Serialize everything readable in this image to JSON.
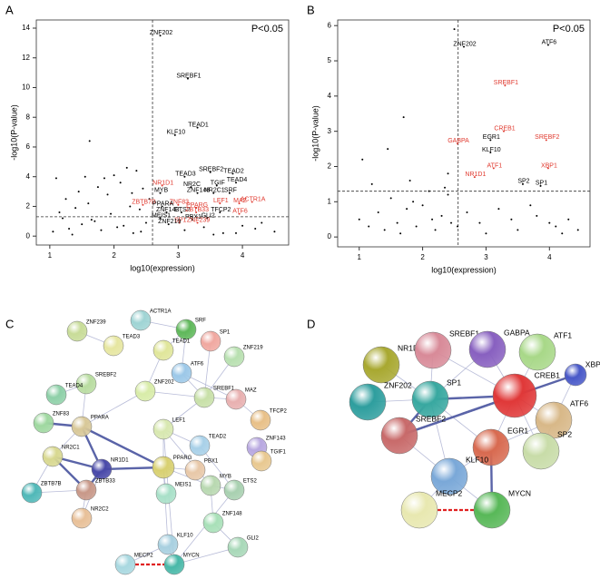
{
  "panels": [
    "A",
    "B",
    "C",
    "D"
  ],
  "chart_data": [
    {
      "type": "scatter",
      "annotation": "P<0.05",
      "xlabel": "log10(expression)",
      "ylabel": "-log10(P-value)",
      "xlim": [
        0.79,
        4.72
      ],
      "ylim": [
        -0.6,
        14.55
      ],
      "xticks": [
        1,
        2,
        3,
        4
      ],
      "yticks": [
        0,
        2,
        4,
        6,
        8,
        10,
        12,
        14
      ],
      "hline": 1.3,
      "vline": 2.6,
      "labeled": {
        "labels": [
          "ZNF202",
          "SREBF1",
          "TEAD1",
          "KLF10",
          "TEAD3",
          "SREBF2",
          "TEAD2",
          "TEAD4",
          "TGIF",
          "NR2C",
          "ZNF148",
          "NR2C1",
          "SRF",
          "NR1D1",
          "MYB",
          "ACTR1A",
          "MAZ",
          "LEF1",
          "ZBTB7B",
          "ZNF83",
          "PPARG",
          "PPARA",
          "ZNF143",
          "ETS2",
          "ZBTB33",
          "TFCP2",
          "ATF6",
          "GLI2",
          "PBX1",
          "MEIS1",
          "SP1",
          "ZNF239",
          "ZNF219"
        ],
        "x": [
          2.72,
          3.15,
          3.3,
          2.95,
          3.1,
          3.5,
          3.85,
          3.9,
          3.6,
          3.2,
          3.3,
          3.55,
          3.8,
          2.75,
          2.72,
          4.15,
          3.95,
          3.65,
          2.45,
          3.0,
          3.28,
          2.75,
          2.82,
          3.05,
          3.28,
          3.65,
          3.95,
          3.45,
          3.22,
          2.72,
          3.02,
          3.3,
          2.85
        ],
        "y": [
          13.5,
          10.6,
          7.3,
          6.8,
          4.0,
          4.3,
          4.2,
          3.6,
          3.4,
          3.3,
          2.9,
          2.9,
          2.9,
          3.4,
          2.9,
          2.3,
          2.2,
          2.2,
          2.1,
          2.1,
          1.9,
          2.0,
          1.6,
          1.6,
          1.6,
          1.6,
          1.5,
          1.2,
          1.1,
          1.2,
          0.9,
          0.9,
          0.8
        ],
        "colors": [
          "#000",
          "#000",
          "#000",
          "#000",
          "#000",
          "#000",
          "#000",
          "#000",
          "#000",
          "#000",
          "#000",
          "#000",
          "#000",
          "#e03a2f",
          "#000",
          "#e03a2f",
          "#e03a2f",
          "#e03a2f",
          "#e03a2f",
          "#e03a2f",
          "#e03a2f",
          "#000",
          "#000",
          "#000",
          "#e03a2f",
          "#000",
          "#e03a2f",
          "#000",
          "#000",
          "#000",
          "#e03a2f",
          "#e03a2f",
          "#000"
        ]
      },
      "background": {
        "x": [
          1.05,
          1.1,
          1.2,
          1.25,
          1.3,
          1.4,
          1.45,
          1.5,
          1.6,
          1.62,
          1.7,
          1.75,
          1.8,
          1.9,
          1.95,
          2.0,
          2.05,
          2.1,
          2.2,
          2.25,
          2.3,
          2.35,
          2.4,
          2.45,
          2.5,
          2.55,
          1.15,
          1.35,
          1.55,
          1.85,
          2.15,
          2.28,
          2.42,
          3.1,
          3.4,
          3.7,
          4.0,
          4.3,
          4.5,
          3.55,
          3.9,
          4.2,
          1.65
        ],
        "y": [
          0.3,
          3.9,
          1.2,
          2.5,
          0.5,
          1.9,
          3.0,
          0.8,
          2.2,
          6.4,
          1.0,
          3.3,
          0.4,
          2.8,
          1.5,
          4.1,
          0.6,
          3.6,
          4.6,
          2.0,
          0.2,
          4.4,
          1.8,
          3.2,
          0.9,
          2.5,
          1.6,
          0.1,
          4.0,
          3.9,
          0.7,
          2.9,
          0.3,
          0.4,
          0.6,
          0.2,
          0.7,
          0.9,
          0.3,
          0.1,
          0.2,
          0.5,
          1.1
        ]
      }
    },
    {
      "type": "scatter",
      "annotation": "P<0.05",
      "xlabel": "log10(expression)",
      "ylabel": "-log10(P-value)",
      "xlim": [
        0.66,
        4.64
      ],
      "ylim": [
        -0.28,
        6.16
      ],
      "xticks": [
        1,
        2,
        3,
        4
      ],
      "yticks": [
        0,
        1,
        2,
        3,
        4,
        5,
        6
      ],
      "hline": 1.3,
      "vline": 2.56,
      "labeled": {
        "labels": [
          "ZNF202",
          "ATF6",
          "SREBF1",
          "CREB1",
          "GABPA",
          "SREBF2",
          "EGR1",
          "KLF10",
          "ATF1",
          "XBP1",
          "NR1D1",
          "SP2",
          "SP1"
        ],
        "x": [
          2.65,
          3.98,
          3.3,
          3.28,
          2.55,
          3.95,
          3.07,
          3.07,
          3.12,
          3.98,
          2.82,
          3.58,
          3.86
        ],
        "y": [
          5.4,
          5.45,
          4.3,
          3.0,
          2.65,
          2.75,
          2.75,
          2.4,
          1.95,
          1.95,
          1.7,
          1.5,
          1.45
        ],
        "colors": [
          "#000",
          "#000",
          "#e03a2f",
          "#e03a2f",
          "#e03a2f",
          "#e03a2f",
          "#000",
          "#000",
          "#e03a2f",
          "#e03a2f",
          "#e03a2f",
          "#000",
          "#000"
        ]
      },
      "background": {
        "x": [
          1.0,
          1.05,
          1.15,
          1.2,
          1.3,
          1.4,
          1.5,
          1.6,
          1.7,
          1.75,
          1.8,
          1.9,
          2.0,
          2.1,
          2.2,
          2.3,
          2.4,
          2.45,
          2.5,
          1.45,
          1.65,
          1.85,
          2.15,
          2.35,
          2.55,
          2.9,
          3.2,
          3.5,
          3.8,
          4.1,
          4.3,
          4.45,
          2.7,
          3.0,
          3.4,
          3.7,
          4.0,
          4.2,
          2.4
        ],
        "y": [
          0.5,
          2.2,
          0.3,
          1.5,
          0.7,
          0.2,
          1.1,
          0.4,
          3.4,
          0.8,
          1.6,
          0.3,
          0.9,
          1.3,
          0.2,
          0.6,
          1.8,
          0.4,
          5.9,
          2.5,
          0.1,
          1.0,
          0.5,
          1.4,
          0.3,
          0.4,
          0.8,
          0.2,
          0.6,
          0.3,
          0.5,
          0.2,
          0.7,
          0.1,
          0.5,
          0.9,
          0.4,
          0.1,
          1.2
        ]
      }
    }
  ],
  "networks": [
    {
      "nodes": [
        "ZNF239",
        "ACTR1A",
        "SRF",
        "TEAD3",
        "TEAD1",
        "SP1",
        "ZNF219",
        "ATF6",
        "SREBF2",
        "ZNF202",
        "TEAD4",
        "SREBF1",
        "MAZ",
        "ZNF83",
        "PPARA",
        "TFCP2",
        "LEF1",
        "ZNF143",
        "TEAD2",
        "TGIF1",
        "NR2C1",
        "NR1D1",
        "PPARG",
        "PBX1",
        "ZBTB7B",
        "ZBTB33",
        "MYB",
        "MEIS1",
        "ETS2",
        "NR2C2",
        "ZNF148",
        "GLI2",
        "KLF10",
        "MECP2",
        "MYCN"
      ]
    },
    {
      "nodes": [
        "NR1D1",
        "SREBF1",
        "GABPA",
        "ATF1",
        "XBP1",
        "ZNF202",
        "SP1",
        "CREB1",
        "ATF6",
        "SREBF2",
        "EGR1",
        "SP2",
        "KLF10",
        "MECP2",
        "MYCN"
      ]
    }
  ]
}
